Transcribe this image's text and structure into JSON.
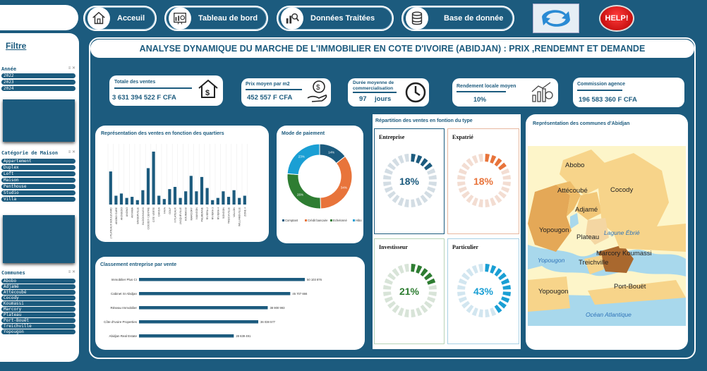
{
  "nav": {
    "accueil": "Acceuil",
    "tableau": "Tableau de bord",
    "donnees": "Données Traitées",
    "base": "Base de donnée",
    "help": "HELP!"
  },
  "sidebar": {
    "filtre": "Filtre",
    "annee_title": "Année",
    "annees": [
      "2022",
      "2023",
      "2024"
    ],
    "categorie_title": "Catégorie de Maison",
    "categories": [
      "Appartement",
      "Duplex",
      "Loft",
      "Maison",
      "Penthouse",
      "Studio",
      "Villa"
    ],
    "communes_title": "Communes",
    "communes": [
      "Abobo",
      "Adjamé",
      "Attécoubé",
      "Cocody",
      "Koumassi",
      "Marcory",
      "Plateau",
      "Port-Bouët",
      "Treichville",
      "Yopougon"
    ]
  },
  "header": {
    "title": "ANALYSE DYNAMIQUE DU MARCHE DE L'IMMOBILIER EN COTE D'IVOIRE (ABIDJAN) : PRIX ,RENDEMNT ET DEMANDE"
  },
  "kpis": {
    "ventes_label": "Totale des ventes",
    "ventes_value": "3 631 394 522 F CFA",
    "prix_label": "Prix moyen par m2",
    "prix_value": "452 557 F CFA",
    "duree_label": "Durée moyenne de commercialisation",
    "duree_value": "97",
    "duree_unit": "jours",
    "rendement_label": "Rendement locale moyen",
    "rendement_value": "10%",
    "commission_label": "Commission agence",
    "commission_value": "196 583 360 F CFA"
  },
  "panels": {
    "quartiers_title": "Représentation des ventes en fonction des quartiers",
    "paiement_title": "Mode  de paiement",
    "type_title": "Répartition des ventes en fontion du type",
    "carte_title": "Représentation des communes d'Abidjan",
    "classement_title": "Classement entreprise par vente"
  },
  "types": [
    {
      "name": "Entreprise",
      "pct": "18%",
      "value": 0.18,
      "color": "#1c5b7e",
      "track": "#d3dde4"
    },
    {
      "name": "Expatrié",
      "pct": "18%",
      "value": 0.18,
      "color": "#e8743b",
      "track": "#f3ddd2"
    },
    {
      "name": "Investisseur",
      "pct": "21%",
      "value": 0.21,
      "color": "#2e7d32",
      "track": "#d8e4d8"
    },
    {
      "name": "Particulier",
      "pct": "43%",
      "value": 0.43,
      "color": "#1a9fd4",
      "track": "#d2e6f0"
    }
  ],
  "map": {
    "labels": [
      "Abobo",
      "Attécoubé",
      "Cocody",
      "Adjamé",
      "Yopougon",
      "Plateau",
      "Lagune Ébrié",
      "Marcory Koumassi",
      "Treichville",
      "Yopougon",
      "Yopougon",
      "Port-Bouët",
      "Océan Atlantique"
    ]
  },
  "chart_data": [
    {
      "type": "bar",
      "title": "Représentation des ventes en fonction des quartiers",
      "categories": [
        "2 PLATEAUX BOULEVARD",
        "ABOBO GARE",
        "AKOUEDO",
        "ANONO",
        "ANYAMA",
        "BINGERVILLE",
        "BLOCKHAUSS",
        "COCODY CENTRE",
        "CITE VERTE",
        "DANGA",
        "FAYA",
        "GOLF",
        "II PLATEAUX",
        "JACQUEVILLE",
        "KOUMASSI",
        "MARCORY",
        "NIANGON",
        "PALMERAIE",
        "RIVIERA 2",
        "RIVIERA 3",
        "RIVIERA 4",
        "SONGON",
        "TREICHVILLE",
        "VALLON",
        "WILLIAMSVILLE",
        "ZONE 4"
      ],
      "values": [
        30,
        8,
        10,
        6,
        7,
        4,
        13,
        33,
        48,
        8,
        5,
        14,
        16,
        6,
        12,
        26,
        12,
        25,
        15,
        4,
        6,
        12,
        7,
        13,
        6,
        8
      ],
      "ylim": [
        0,
        55
      ]
    },
    {
      "type": "pie",
      "title": "Mode  de paiement",
      "labels": [
        "Comptant",
        "Crédit bancaire",
        "Echelonné",
        "Hibo"
      ],
      "values": [
        14,
        34,
        26,
        23
      ],
      "slice_labels": [
        "14%",
        "34%",
        "26%",
        "23%"
      ],
      "colors": [
        "#1c5b7e",
        "#e8743b",
        "#2e7d32",
        "#1a9fd4"
      ]
    },
    {
      "type": "bar",
      "title": "Classement entreprise par vente",
      "categories": [
        "Immobilier Plus CI",
        "Cabinet SI Abidjan",
        "Réseau Immobilier",
        "Côte d'Ivoire Properties",
        "Abidjan Real Estate"
      ],
      "values": [
        50103876,
        45707666,
        38900993,
        36038577,
        28639491
      ],
      "value_labels": [
        "50 103 876",
        "45 707 666",
        "38 900 993",
        "36 038 577",
        "28 639 491"
      ]
    }
  ]
}
